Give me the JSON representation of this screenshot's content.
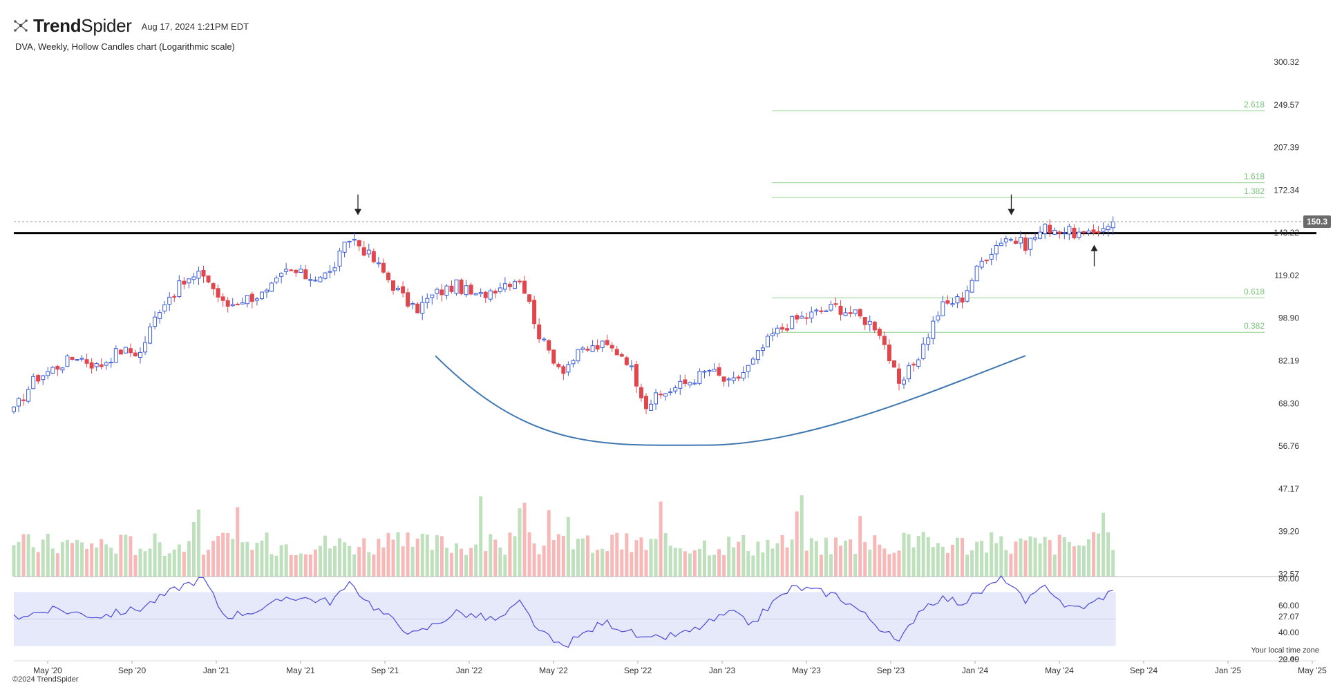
{
  "header": {
    "brand_bold": "Trend",
    "brand_light": "Spider",
    "timestamp": "Aug 17, 2024 1:21PM EDT",
    "subtitle": "DVA, Weekly, Hollow Candles chart (Logarithmic scale)"
  },
  "footer": {
    "timezone_note": "Your local time zone",
    "copyright": "©2024 TrendSpider"
  },
  "colors": {
    "up": "#3a5bd9",
    "down": "#e0474c",
    "volume_up": "#bfe0bd",
    "volume_down": "#f7b8b8",
    "rsi": "#4a4ad6",
    "rsi_band": "#e6e9f9",
    "fib": "#8fd08c",
    "cup": "#3f77b0",
    "resistance": "#000000"
  },
  "chart_data": {
    "type": "candlestick",
    "symbol": "DVA",
    "interval": "Weekly",
    "scale": "log",
    "price_ticks": [
      "300.32",
      "249.57",
      "207.39",
      "172.34",
      "143.22",
      "119.02",
      "98.90",
      "82.19",
      "68.30",
      "56.76",
      "47.17",
      "39.20",
      "32.57",
      "27.07",
      "22.49"
    ],
    "rsi_ticks": [
      "80.00",
      "60.00",
      "40.00",
      "20.00"
    ],
    "x_labels": [
      "May '20",
      "Sep '20",
      "Jan '21",
      "May '21",
      "Sep '21",
      "Jan '22",
      "May '22",
      "Sep '22",
      "Jan '23",
      "May '23",
      "Sep '23",
      "Jan '24",
      "May '24",
      "Sep '24",
      "Jan '25",
      "May '25"
    ],
    "last_price": "150.3",
    "resistance_level": 143,
    "fib_levels": [
      {
        "label": "2.618",
        "value": 243
      },
      {
        "label": "1.618",
        "value": 178
      },
      {
        "label": "1.382",
        "value": 167
      },
      {
        "label": "0.618",
        "value": 108
      },
      {
        "label": "0.382",
        "value": 93
      }
    ],
    "cup_curve": {
      "start_date": "2021-12",
      "bottom": 57,
      "end_date": "2024-04"
    },
    "annotations": [
      {
        "type": "down-arrow",
        "date": "2021-08"
      },
      {
        "type": "down-arrow",
        "date": "2024-03"
      },
      {
        "type": "up-arrow",
        "date": "2024-07"
      }
    ],
    "weekly_close_anchors": [
      {
        "date": "2020-04",
        "close": 66
      },
      {
        "date": "2020-05",
        "close": 76
      },
      {
        "date": "2020-06",
        "close": 80
      },
      {
        "date": "2020-07",
        "close": 84
      },
      {
        "date": "2020-08",
        "close": 80
      },
      {
        "date": "2020-09",
        "close": 86
      },
      {
        "date": "2020-10",
        "close": 85
      },
      {
        "date": "2020-11",
        "close": 105
      },
      {
        "date": "2020-12",
        "close": 115
      },
      {
        "date": "2021-01",
        "close": 120
      },
      {
        "date": "2021-02",
        "close": 104
      },
      {
        "date": "2021-03",
        "close": 108
      },
      {
        "date": "2021-04",
        "close": 110
      },
      {
        "date": "2021-05",
        "close": 122
      },
      {
        "date": "2021-06",
        "close": 118
      },
      {
        "date": "2021-07",
        "close": 120
      },
      {
        "date": "2021-08",
        "close": 141
      },
      {
        "date": "2021-09",
        "close": 128
      },
      {
        "date": "2021-10",
        "close": 114
      },
      {
        "date": "2021-11",
        "close": 102
      },
      {
        "date": "2021-12",
        "close": 110
      },
      {
        "date": "2022-01",
        "close": 114
      },
      {
        "date": "2022-02",
        "close": 108
      },
      {
        "date": "2022-03",
        "close": 114
      },
      {
        "date": "2022-04",
        "close": 118
      },
      {
        "date": "2022-05",
        "close": 90
      },
      {
        "date": "2022-06",
        "close": 79
      },
      {
        "date": "2022-07",
        "close": 86
      },
      {
        "date": "2022-08",
        "close": 88
      },
      {
        "date": "2022-09",
        "close": 84
      },
      {
        "date": "2022-10",
        "close": 68
      },
      {
        "date": "2022-11",
        "close": 72
      },
      {
        "date": "2022-12",
        "close": 75
      },
      {
        "date": "2023-01",
        "close": 79
      },
      {
        "date": "2023-02",
        "close": 74
      },
      {
        "date": "2023-03",
        "close": 81
      },
      {
        "date": "2023-04",
        "close": 92
      },
      {
        "date": "2023-05",
        "close": 98
      },
      {
        "date": "2023-06",
        "close": 101
      },
      {
        "date": "2023-07",
        "close": 104
      },
      {
        "date": "2023-08",
        "close": 100
      },
      {
        "date": "2023-09",
        "close": 95
      },
      {
        "date": "2023-10",
        "close": 73
      },
      {
        "date": "2023-11",
        "close": 85
      },
      {
        "date": "2023-12",
        "close": 104
      },
      {
        "date": "2024-01",
        "close": 108
      },
      {
        "date": "2024-02",
        "close": 128
      },
      {
        "date": "2024-03",
        "close": 141
      },
      {
        "date": "2024-04",
        "close": 136
      },
      {
        "date": "2024-05",
        "close": 147
      },
      {
        "date": "2024-06",
        "close": 144
      },
      {
        "date": "2024-07",
        "close": 141
      },
      {
        "date": "2024-08",
        "close": 150.3
      }
    ],
    "rsi_anchors": [
      {
        "date": "2020-04",
        "value": 52
      },
      {
        "date": "2020-06",
        "value": 57
      },
      {
        "date": "2020-08",
        "value": 52
      },
      {
        "date": "2020-10",
        "value": 58
      },
      {
        "date": "2020-12",
        "value": 75
      },
      {
        "date": "2021-01",
        "value": 80
      },
      {
        "date": "2021-02",
        "value": 52
      },
      {
        "date": "2021-04",
        "value": 58
      },
      {
        "date": "2021-05",
        "value": 67
      },
      {
        "date": "2021-07",
        "value": 63
      },
      {
        "date": "2021-08",
        "value": 76
      },
      {
        "date": "2021-09",
        "value": 60
      },
      {
        "date": "2021-11",
        "value": 38
      },
      {
        "date": "2022-01",
        "value": 55
      },
      {
        "date": "2022-03",
        "value": 49
      },
      {
        "date": "2022-04",
        "value": 62
      },
      {
        "date": "2022-05",
        "value": 40
      },
      {
        "date": "2022-06",
        "value": 29
      },
      {
        "date": "2022-08",
        "value": 48
      },
      {
        "date": "2022-09",
        "value": 42
      },
      {
        "date": "2022-10",
        "value": 34
      },
      {
        "date": "2022-12",
        "value": 40
      },
      {
        "date": "2023-02",
        "value": 55
      },
      {
        "date": "2023-03",
        "value": 46
      },
      {
        "date": "2023-04",
        "value": 62
      },
      {
        "date": "2023-05",
        "value": 74
      },
      {
        "date": "2023-07",
        "value": 68
      },
      {
        "date": "2023-08",
        "value": 58
      },
      {
        "date": "2023-10",
        "value": 32
      },
      {
        "date": "2023-11",
        "value": 58
      },
      {
        "date": "2023-12",
        "value": 66
      },
      {
        "date": "2024-01",
        "value": 62
      },
      {
        "date": "2024-03",
        "value": 81
      },
      {
        "date": "2024-04",
        "value": 62
      },
      {
        "date": "2024-05",
        "value": 75
      },
      {
        "date": "2024-06",
        "value": 58
      },
      {
        "date": "2024-07",
        "value": 60
      },
      {
        "date": "2024-08",
        "value": 70
      }
    ]
  }
}
